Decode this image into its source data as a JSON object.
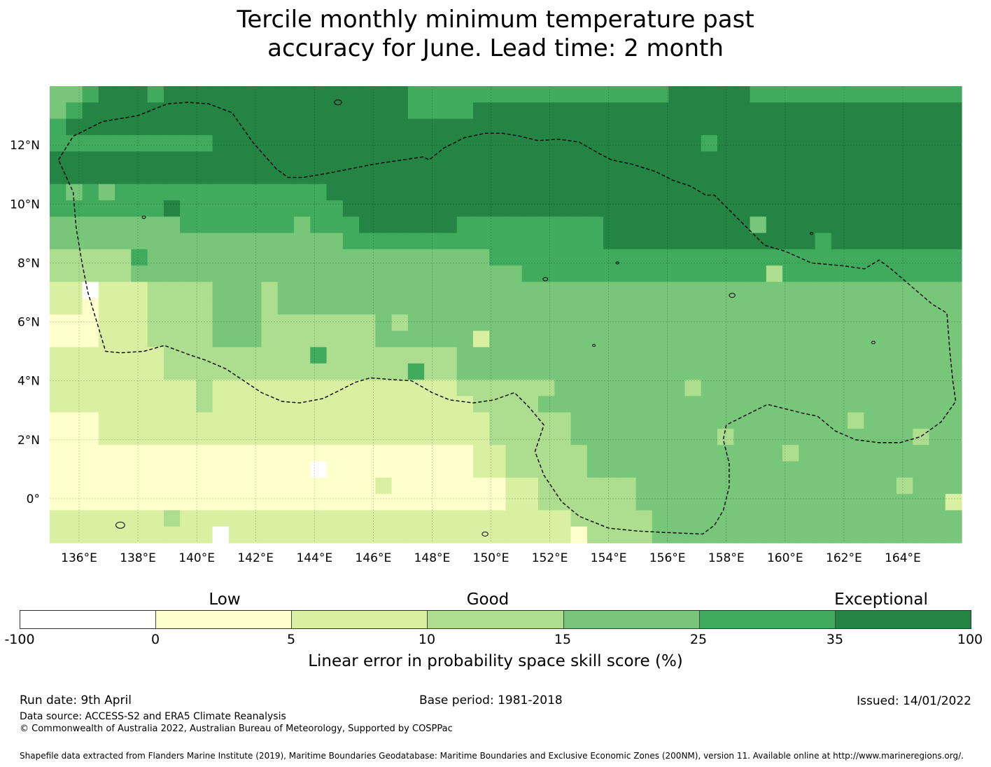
{
  "title": {
    "line1": "Tercile monthly minimum temperature past",
    "line2": "accuracy for June. Lead time: 2 month"
  },
  "map": {
    "lon_range": [
      135,
      166
    ],
    "lat_range": [
      -1.5,
      14
    ],
    "lon_ticks": [
      "136°E",
      "138°E",
      "140°E",
      "142°E",
      "144°E",
      "146°E",
      "148°E",
      "150°E",
      "152°E",
      "154°E",
      "156°E",
      "158°E",
      "160°E",
      "162°E",
      "164°E"
    ],
    "lat_ticks": [
      "12°N",
      "10°N",
      "8°N",
      "6°N",
      "4°N",
      "2°N",
      "0°"
    ],
    "grid_rows_north_to_south": [
      "44666666666666666666665555555555555555666665555555555555",
      "45666666666666666666665555666666666666666666666666666666",
      "56666666666666666666666666666666666666666666666666666666",
      "55555555556666666666666666666666666666666666666666666666",
      "66666666666666666666666666666666666666666666666666666666",
      "66666666666666666666666666666666666666666666666666666666",
      "55555555555555555666666666666666666666666666666666666666",
      "55555555555555555566666666666666666666666666666666666666",
      "44444444555555555556666665555555556666666666666666666666",
      "44444444444444444455555555555555556666666666666666666666",
      "33333444444444444444444444455555555555555555555555555555",
      "33333444444444444444444444444555555555555555555555555555",
      "22222233334443444444444444444444444444444444444444444444",
      "22222233334443444444444444444444444444444444444444444444",
      "11122233334443333333444444444444444444444444444444444444",
      "11122233334443333333444444444444444444444444444444444444",
      "22222223333333333333333334444444444444444444444444444444",
      "22222223333333333333333334444444444444444444444444444444",
      "22222222232222222222222222333334444444444444444444444444",
      "22222222232222222222222222333334444444444444444444444444",
      "11122222222222222222222222233333444444444444444444444444",
      "11122222222222222222222222233333444444444444444444444444",
      "11111111111111111111111111223333344444444444444444444444",
      "11111111111111111111111111223333344444444444444444444444",
      "11111111111111111111111111112233333344444444444444444444",
      "11111111111111111111111111112233333344444444444444444444",
      "22222222222222222222222222222222333334444444444444444444",
      "22222222222222222222222222222222333334444444444444444444"
    ],
    "overrides": [
      [
        0,
        2,
        5
      ],
      [
        0,
        6,
        5
      ],
      [
        0,
        14,
        6
      ],
      [
        1,
        26,
        6
      ],
      [
        2,
        34,
        6
      ],
      [
        3,
        40,
        5
      ],
      [
        4,
        50,
        6
      ],
      [
        6,
        1,
        4
      ],
      [
        6,
        3,
        4
      ],
      [
        7,
        7,
        6
      ],
      [
        8,
        15,
        4
      ],
      [
        9,
        21,
        5
      ],
      [
        10,
        5,
        5
      ],
      [
        11,
        11,
        4
      ],
      [
        12,
        2,
        0
      ],
      [
        13,
        2,
        1
      ],
      [
        14,
        8,
        3
      ],
      [
        15,
        12,
        4
      ],
      [
        16,
        16,
        5
      ],
      [
        17,
        22,
        5
      ],
      [
        18,
        25,
        3
      ],
      [
        19,
        30,
        4
      ],
      [
        20,
        36,
        4
      ],
      [
        21,
        41,
        3
      ],
      [
        22,
        45,
        3
      ],
      [
        23,
        48,
        4
      ],
      [
        24,
        52,
        3
      ],
      [
        25,
        55,
        2
      ],
      [
        26,
        7,
        3
      ],
      [
        27,
        10,
        0
      ],
      [
        14,
        21,
        3
      ],
      [
        15,
        26,
        2
      ],
      [
        16,
        31,
        4
      ],
      [
        17,
        35,
        4
      ],
      [
        18,
        39,
        3
      ],
      [
        19,
        44,
        4
      ],
      [
        20,
        49,
        3
      ],
      [
        21,
        53,
        3
      ],
      [
        22,
        12,
        1
      ],
      [
        23,
        16,
        0
      ],
      [
        24,
        20,
        2
      ],
      [
        25,
        24,
        1
      ],
      [
        26,
        28,
        2
      ],
      [
        27,
        32,
        1
      ],
      [
        10,
        40,
        5
      ],
      [
        11,
        44,
        3
      ],
      [
        12,
        48,
        4
      ],
      [
        13,
        52,
        4
      ],
      [
        9,
        47,
        5
      ],
      [
        8,
        43,
        4
      ]
    ],
    "colors": [
      "#ffffff",
      "#ffffcc",
      "#d9f0a3",
      "#addd8e",
      "#78c679",
      "#41ab5d",
      "#238443"
    ],
    "eez_boundary_lonlat": [
      [
        135.3,
        11.5
      ],
      [
        135.8,
        12.3
      ],
      [
        136.8,
        12.8
      ],
      [
        138.0,
        13.0
      ],
      [
        139.0,
        13.4
      ],
      [
        139.7,
        13.45
      ],
      [
        140.4,
        13.4
      ],
      [
        141.2,
        13.1
      ],
      [
        141.9,
        12.1
      ],
      [
        142.7,
        11.2
      ],
      [
        143.1,
        10.9
      ],
      [
        143.6,
        10.9
      ],
      [
        144.2,
        11.0
      ],
      [
        145.0,
        11.15
      ],
      [
        146.0,
        11.35
      ],
      [
        147.0,
        11.5
      ],
      [
        147.7,
        11.6
      ],
      [
        147.9,
        11.5
      ],
      [
        148.4,
        11.9
      ],
      [
        149.1,
        12.25
      ],
      [
        149.8,
        12.4
      ],
      [
        150.4,
        12.4
      ],
      [
        151.0,
        12.3
      ],
      [
        151.6,
        12.15
      ],
      [
        152.3,
        12.2
      ],
      [
        153.0,
        12.1
      ],
      [
        153.7,
        11.7
      ],
      [
        154.1,
        11.5
      ],
      [
        154.8,
        11.35
      ],
      [
        155.6,
        11.1
      ],
      [
        156.2,
        10.8
      ],
      [
        156.8,
        10.6
      ],
      [
        157.3,
        10.3
      ],
      [
        157.6,
        10.3
      ],
      [
        158.2,
        9.7
      ],
      [
        158.7,
        9.2
      ],
      [
        159.3,
        8.6
      ],
      [
        160.0,
        8.4
      ],
      [
        160.9,
        8.0
      ],
      [
        162.0,
        7.9
      ],
      [
        162.7,
        7.8
      ],
      [
        163.2,
        8.1
      ],
      [
        163.6,
        7.8
      ],
      [
        164.3,
        7.2
      ],
      [
        165.0,
        6.6
      ],
      [
        165.5,
        6.3
      ],
      [
        165.6,
        5.0
      ],
      [
        165.7,
        4.0
      ],
      [
        165.8,
        3.3
      ],
      [
        165.3,
        2.6
      ],
      [
        164.6,
        2.1
      ],
      [
        163.9,
        1.9
      ],
      [
        163.2,
        1.9
      ],
      [
        162.4,
        2.0
      ],
      [
        161.7,
        2.3
      ],
      [
        161.1,
        2.8
      ],
      [
        160.6,
        2.9
      ],
      [
        160.2,
        3.0
      ],
      [
        159.4,
        3.2
      ],
      [
        158.8,
        2.9
      ],
      [
        158.0,
        2.5
      ],
      [
        157.9,
        2.0
      ],
      [
        158.1,
        1.2
      ],
      [
        158.1,
        0.4
      ],
      [
        157.9,
        -0.4
      ],
      [
        157.6,
        -0.9
      ],
      [
        157.2,
        -1.2
      ],
      [
        156.0,
        -1.15
      ],
      [
        155.0,
        -1.1
      ],
      [
        154.0,
        -1.0
      ],
      [
        153.0,
        -0.6
      ],
      [
        152.4,
        -0.1
      ],
      [
        151.8,
        0.8
      ],
      [
        151.5,
        1.6
      ],
      [
        151.8,
        2.5
      ],
      [
        151.3,
        3.1
      ],
      [
        150.8,
        3.6
      ],
      [
        150.1,
        3.35
      ],
      [
        149.4,
        3.25
      ],
      [
        148.6,
        3.35
      ],
      [
        148.0,
        3.6
      ],
      [
        147.3,
        4.0
      ],
      [
        146.5,
        4.05
      ],
      [
        145.9,
        4.1
      ],
      [
        145.4,
        3.95
      ],
      [
        144.9,
        3.7
      ],
      [
        144.3,
        3.4
      ],
      [
        143.5,
        3.25
      ],
      [
        142.9,
        3.3
      ],
      [
        142.2,
        3.6
      ],
      [
        141.6,
        4.0
      ],
      [
        141.0,
        4.4
      ],
      [
        140.3,
        4.7
      ],
      [
        139.7,
        4.9
      ],
      [
        138.9,
        5.2
      ],
      [
        138.2,
        5.0
      ],
      [
        137.4,
        4.95
      ],
      [
        136.9,
        5.0
      ],
      [
        136.6,
        6.0
      ],
      [
        136.3,
        7.0
      ],
      [
        136.1,
        8.0
      ],
      [
        135.9,
        9.2
      ],
      [
        135.8,
        10.4
      ],
      [
        135.3,
        11.5
      ]
    ]
  },
  "colorbar": {
    "ticks": [
      "-100",
      "0",
      "5",
      "10",
      "15",
      "25",
      "35",
      "100"
    ],
    "categories": [
      "Low",
      "Good",
      "Exceptional"
    ],
    "label": "Linear error in probability space skill score (%)"
  },
  "footer": {
    "run_date": "Run date: 9th April",
    "base_period": "Base period: 1981-2018",
    "issued": "Issued: 14/01/2022",
    "data_source": "Data source: ACCESS-S2 and ERA5 Climate Reanalysis",
    "copyright": "© Commonwealth of Australia 2022, Australian Bureau of Meteorology, Supported by COSPPac",
    "shapefile": "Shapefile data extracted from Flanders Marine Institute (2019), Maritime Boundaries Geodatabase: Maritime Boundaries and Exclusive Economic Zones (200NM), version 11. Available online at http://www.marineregions.org/."
  }
}
